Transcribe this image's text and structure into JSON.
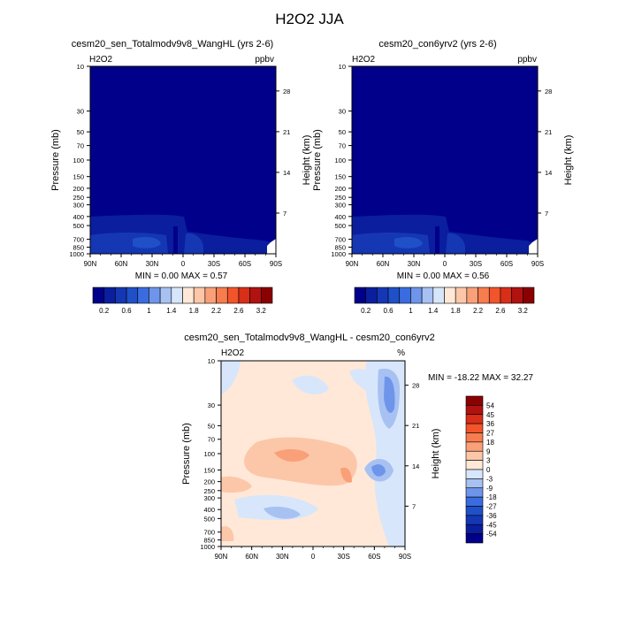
{
  "chart_data": [
    {
      "type": "heatmap",
      "suptitle": "H2O2 JJA",
      "title": "cesm20_sen_Totalmodv9v8_WangHL (yrs 2-6)",
      "left_label": "H2O2",
      "right_label": "ppbv",
      "xlabel": "",
      "ylabel": "Pressure (mb)",
      "ylabel_right": "Height (km)",
      "x_ticks": [
        "90N",
        "60N",
        "30N",
        "0",
        "30S",
        "60S",
        "90S"
      ],
      "y_ticks": [
        "10",
        "30",
        "50",
        "70",
        "100",
        "150",
        "200",
        "250",
        "300",
        "400",
        "500",
        "700",
        "850",
        "1000"
      ],
      "y_right_ticks": [
        "28",
        "21",
        "14",
        "7"
      ],
      "min_label": "MIN =   0.00  MAX =   0.57",
      "colorbar": {
        "orientation": "horizontal",
        "colors": [
          "#00008B",
          "#0A1E9E",
          "#1537B4",
          "#1F50C8",
          "#3A6CE0",
          "#6E95EA",
          "#A7C1F2",
          "#D7E6FA",
          "#FFE8D8",
          "#FCC7A8",
          "#F9A078",
          "#F77C4E",
          "#F2542C",
          "#D92E18",
          "#B01210",
          "#8B0000"
        ],
        "labels": [
          "0.2",
          "0.6",
          "1",
          "1.4",
          "1.8",
          "2.2",
          "2.6",
          "3.2"
        ]
      }
    },
    {
      "type": "heatmap",
      "title": "cesm20_con6yrv2 (yrs 2-6)",
      "left_label": "H2O2",
      "right_label": "ppbv",
      "xlabel": "",
      "ylabel": "Pressure (mb)",
      "ylabel_right": "Height (km)",
      "x_ticks": [
        "90N",
        "60N",
        "30N",
        "0",
        "30S",
        "60S",
        "90S"
      ],
      "y_ticks": [
        "10",
        "30",
        "50",
        "70",
        "100",
        "150",
        "200",
        "250",
        "300",
        "400",
        "500",
        "700",
        "850",
        "1000"
      ],
      "y_right_ticks": [
        "28",
        "21",
        "14",
        "7"
      ],
      "min_label": "MIN =   0.00  MAX =   0.56",
      "colorbar": {
        "orientation": "horizontal",
        "colors": [
          "#00008B",
          "#0A1E9E",
          "#1537B4",
          "#1F50C8",
          "#3A6CE0",
          "#6E95EA",
          "#A7C1F2",
          "#D7E6FA",
          "#FFE8D8",
          "#FCC7A8",
          "#F9A078",
          "#F77C4E",
          "#F2542C",
          "#D92E18",
          "#B01210",
          "#8B0000"
        ],
        "labels": [
          "0.2",
          "0.6",
          "1",
          "1.4",
          "1.8",
          "2.2",
          "2.6",
          "3.2"
        ]
      }
    },
    {
      "type": "heatmap",
      "title": "cesm20_sen_Totalmodv9v8_WangHL - cesm20_con6yrv2",
      "left_label": "H2O2",
      "right_label": "%",
      "xlabel": "",
      "ylabel": "Pressure (mb)",
      "ylabel_right": "Height (km)",
      "x_ticks": [
        "90N",
        "60N",
        "30N",
        "0",
        "30S",
        "60S",
        "90S"
      ],
      "y_ticks": [
        "10",
        "30",
        "50",
        "70",
        "100",
        "150",
        "200",
        "250",
        "300",
        "400",
        "500",
        "700",
        "850",
        "1000"
      ],
      "y_right_ticks": [
        "28",
        "21",
        "14",
        "7"
      ],
      "min_label": "MIN = -18.22  MAX =  32.27",
      "colorbar": {
        "orientation": "vertical",
        "labels_top_to_bottom": [
          "54",
          "45",
          "36",
          "27",
          "18",
          "9",
          "3",
          "0",
          "-3",
          "-9",
          "-18",
          "-27",
          "-36",
          "-45",
          "-54"
        ],
        "colors_top_to_bottom": [
          "#8B0000",
          "#B01210",
          "#D92E18",
          "#F2542C",
          "#F77C4E",
          "#F9A078",
          "#FCC7A8",
          "#FFE8D8",
          "#D7E6FA",
          "#A7C1F2",
          "#6E95EA",
          "#3A6CE0",
          "#1F50C8",
          "#1537B4",
          "#0A1E9E",
          "#00008B"
        ]
      }
    }
  ]
}
